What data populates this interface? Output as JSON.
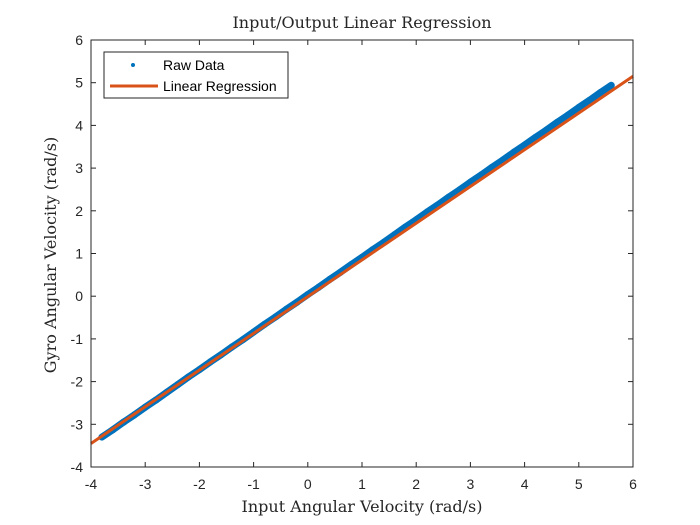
{
  "chart_data": {
    "type": "scatter",
    "title": "Input/Output Linear Regression",
    "xlabel": "Input Angular Velocity (rad/s)",
    "ylabel": "Gyro Angular Velocity (rad/s)",
    "xlim": [
      -4,
      6
    ],
    "ylim": [
      -4,
      6
    ],
    "xticks": [
      -4,
      -3,
      -2,
      -1,
      0,
      1,
      2,
      3,
      4,
      5,
      6
    ],
    "yticks": [
      -4,
      -3,
      -2,
      -1,
      0,
      1,
      2,
      3,
      4,
      5,
      6
    ],
    "grid": false,
    "legend_position": "top-left",
    "series": [
      {
        "name": "Raw Data",
        "style": "markers",
        "color": "#0072BD",
        "x": [
          -3.8,
          -3.6,
          -3.4,
          -3.2,
          -3.0,
          -2.8,
          -2.6,
          -2.4,
          -2.2,
          -2.0,
          -1.8,
          -1.6,
          -1.4,
          -1.2,
          -1.0,
          -0.8,
          -0.6,
          -0.4,
          -0.2,
          0.0,
          0.2,
          0.4,
          0.6,
          0.8,
          1.0,
          1.2,
          1.4,
          1.6,
          1.8,
          2.0,
          2.2,
          2.4,
          2.6,
          2.8,
          3.0,
          3.2,
          3.4,
          3.6,
          3.8,
          4.0,
          4.2,
          4.4,
          4.6,
          4.8,
          5.0,
          5.2,
          5.4,
          5.6
        ],
        "y": [
          -3.3,
          -3.13,
          -2.95,
          -2.78,
          -2.6,
          -2.43,
          -2.25,
          -2.07,
          -1.89,
          -1.72,
          -1.54,
          -1.37,
          -1.19,
          -1.02,
          -0.84,
          -0.66,
          -0.49,
          -0.31,
          -0.14,
          0.04,
          0.21,
          0.39,
          0.56,
          0.74,
          0.91,
          1.09,
          1.26,
          1.44,
          1.62,
          1.79,
          1.97,
          2.14,
          2.32,
          2.49,
          2.67,
          2.84,
          3.02,
          3.19,
          3.37,
          3.54,
          3.72,
          3.89,
          4.07,
          4.24,
          4.42,
          4.59,
          4.77,
          4.94
        ]
      },
      {
        "name": "Linear Regression",
        "style": "line",
        "color": "#D95319",
        "x": [
          -4,
          6
        ],
        "y": [
          -3.45,
          5.15
        ]
      }
    ]
  }
}
